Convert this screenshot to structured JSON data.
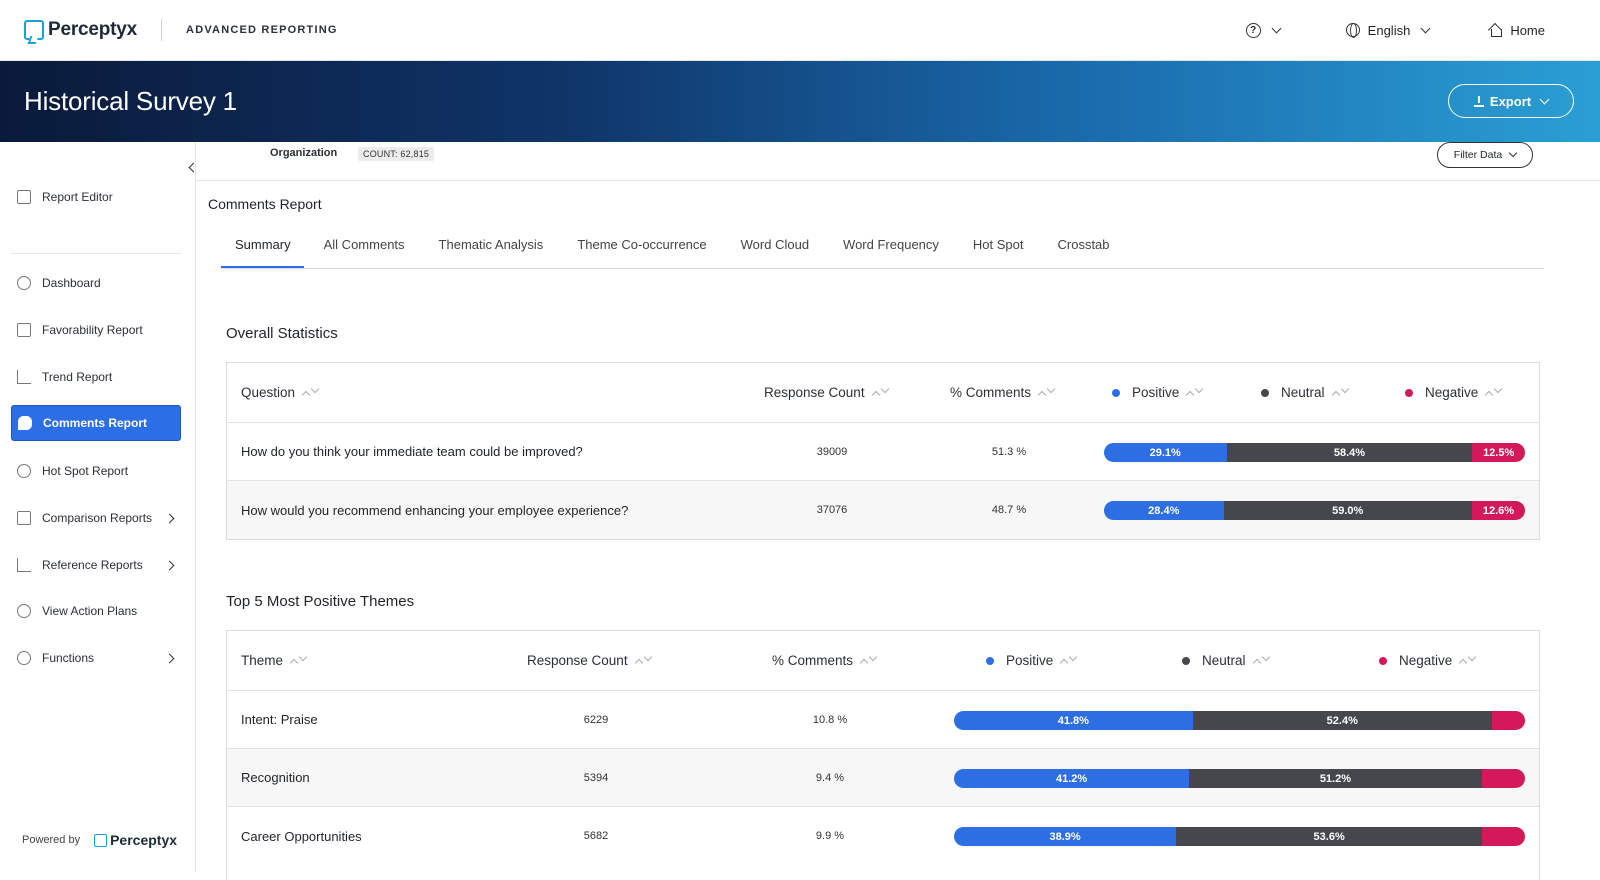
{
  "colors": {
    "positive": "#2d6fe3",
    "neutral": "#45474d",
    "negative": "#d3195a",
    "accent": "#2c6ee6"
  },
  "topbar": {
    "brand": "Perceptyx",
    "product": "ADVANCED REPORTING",
    "language": "English",
    "home": "Home"
  },
  "banner": {
    "title": "Historical Survey 1",
    "export_label": "Export"
  },
  "org": {
    "label": "Organization",
    "count": "COUNT: 62,815",
    "filter_label": "Filter Data"
  },
  "sidebar": {
    "items": [
      {
        "label": "Report Editor",
        "icon": "edit-icon"
      },
      {
        "label": "Dashboard",
        "icon": "gauge-icon"
      },
      {
        "label": "Favorability Report",
        "icon": "thumbs-up-icon"
      },
      {
        "label": "Trend Report",
        "icon": "line-chart-icon"
      },
      {
        "label": "Comments Report",
        "icon": "comments-icon",
        "active": true
      },
      {
        "label": "Hot Spot Report",
        "icon": "target-icon"
      },
      {
        "label": "Comparison Reports",
        "icon": "scales-icon",
        "submenu": true
      },
      {
        "label": "Reference Reports",
        "icon": "bar-chart-icon",
        "submenu": true
      },
      {
        "label": "View Action Plans",
        "icon": "check-circle-icon"
      },
      {
        "label": "Functions",
        "icon": "gear-icon",
        "submenu": true
      }
    ],
    "powered_by": "Powered by",
    "powered_brand": "Perceptyx"
  },
  "report": {
    "title": "Comments Report",
    "tabs": [
      "Summary",
      "All Comments",
      "Thematic Analysis",
      "Theme Co-occurrence",
      "Word Cloud",
      "Word Frequency",
      "Hot Spot",
      "Crosstab"
    ]
  },
  "overall": {
    "title": "Overall Statistics",
    "headers": {
      "question": "Question",
      "count": "Response Count",
      "pct": "% Comments",
      "positive": "Positive",
      "neutral": "Neutral",
      "negative": "Negative"
    },
    "rows": [
      {
        "question": "How do you think your immediate team could be improved?",
        "count": "39009",
        "pct": "51.3 %",
        "pos": 29.1,
        "neu": 58.4,
        "neg": 12.5,
        "pos_label": "29.1%",
        "neu_label": "58.4%",
        "neg_label": "12.5%"
      },
      {
        "question": "How would you recommend enhancing your employee experience?",
        "count": "37076",
        "pct": "48.7 %",
        "pos": 28.4,
        "neu": 59.0,
        "neg": 12.6,
        "pos_label": "28.4%",
        "neu_label": "59.0%",
        "neg_label": "12.6%"
      }
    ]
  },
  "positive_themes": {
    "title": "Top 5 Most Positive Themes",
    "headers": {
      "theme": "Theme",
      "count": "Response Count",
      "pct": "% Comments",
      "positive": "Positive",
      "neutral": "Neutral",
      "negative": "Negative"
    },
    "rows": [
      {
        "theme": "Intent: Praise",
        "count": "6229",
        "pct": "10.8 %",
        "pos": 41.8,
        "neu": 52.4,
        "neg": 5.8,
        "pos_label": "41.8%",
        "neu_label": "52.4%"
      },
      {
        "theme": "Recognition",
        "count": "5394",
        "pct": "9.4 %",
        "pos": 41.2,
        "neu": 51.2,
        "neg": 7.6,
        "pos_label": "41.2%",
        "neu_label": "51.2%"
      },
      {
        "theme": "Career Opportunities",
        "count": "5682",
        "pct": "9.9 %",
        "pos": 38.9,
        "neu": 53.6,
        "neg": 7.5,
        "pos_label": "38.9%",
        "neu_label": "53.6%"
      }
    ]
  }
}
